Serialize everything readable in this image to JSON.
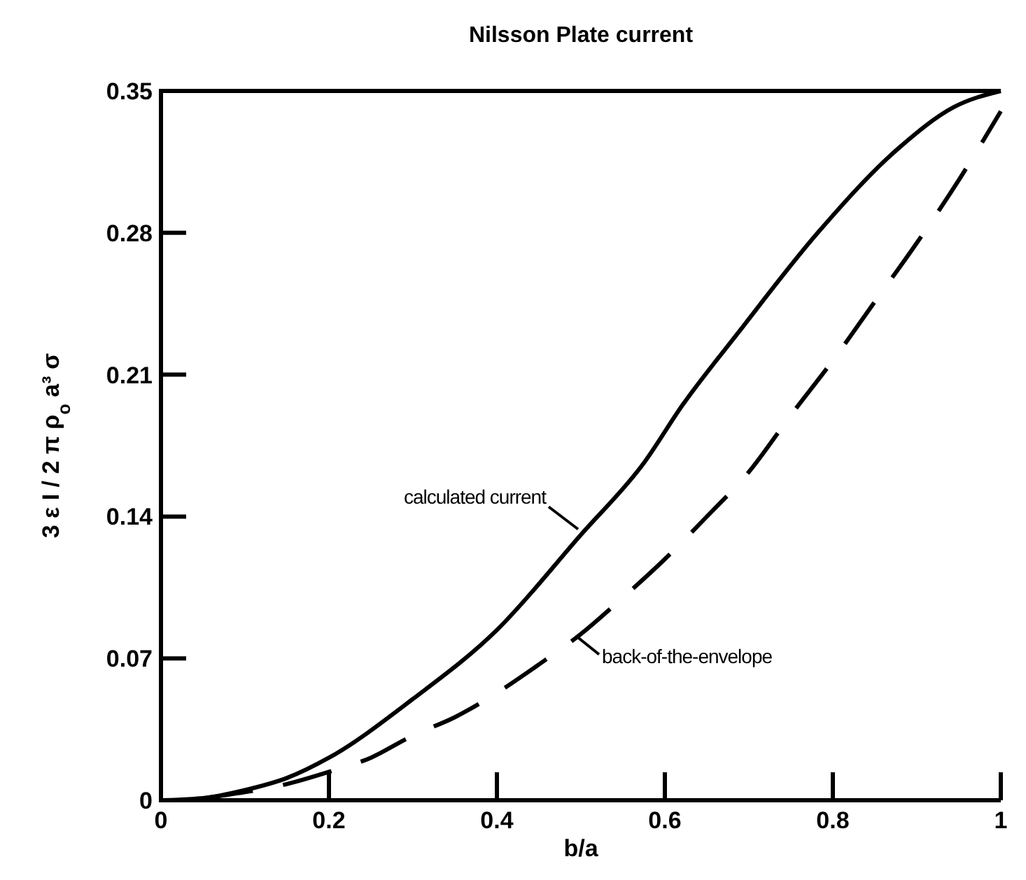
{
  "chart_data": {
    "type": "line",
    "title": "Nilsson Plate current",
    "xlabel": "b/a",
    "ylabel": "3 ε I / 2 π ρ$_{o}$ a³ σ",
    "xlim": [
      0,
      1
    ],
    "ylim": [
      0,
      0.35
    ],
    "xticks": [
      0,
      0.2,
      0.4,
      0.6,
      0.8,
      1
    ],
    "yticks": [
      0,
      0.07,
      0.14,
      0.21,
      0.28,
      0.35
    ],
    "grid": false,
    "series": [
      {
        "color": "#000000",
        "line_style": "solid",
        "x": [
          0,
          0.05,
          0.1,
          0.15,
          0.2,
          0.3,
          0.4,
          0.5,
          0.576,
          0.621,
          0.686,
          0.782,
          0.879,
          0.944,
          1
        ],
        "values": [
          0,
          0.001,
          0.005,
          0.011,
          0.021,
          0.05,
          0.084,
          0.131,
          0.167,
          0.195,
          0.23,
          0.28,
          0.322,
          0.342,
          0.35
        ]
      },
      {
        "color": "#000000",
        "line_style": "dashed",
        "x": [
          0.05,
          0.1,
          0.15,
          0.2,
          0.25,
          0.3,
          0.35,
          0.4,
          0.45,
          0.5,
          0.55,
          0.6,
          0.65,
          0.7,
          0.75,
          0.8,
          0.85,
          0.9,
          0.95,
          1
        ],
        "values": [
          0.001,
          0.004,
          0.008,
          0.014,
          0.021,
          0.032,
          0.041,
          0.053,
          0.067,
          0.082,
          0.1,
          0.119,
          0.14,
          0.162,
          0.19,
          0.217,
          0.246,
          0.275,
          0.306,
          0.34
        ]
      }
    ],
    "annotations": [
      {
        "text": "calculated current",
        "x": 0.5,
        "y": 0.131
      },
      {
        "text": "back-of-the-envelope",
        "x": 0.5,
        "y": 0.083
      }
    ]
  }
}
